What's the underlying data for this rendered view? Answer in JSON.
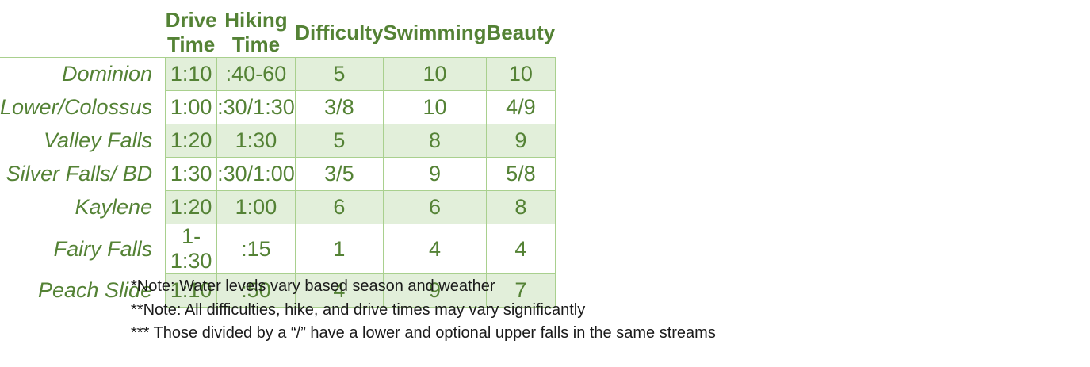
{
  "columns": [
    "Drive Time",
    "Hiking Time",
    "Difficulty",
    "Swimming",
    "Beauty"
  ],
  "rows": [
    {
      "name": "Dominion",
      "values": [
        "1:10",
        ":40-60",
        "5",
        "10",
        "10"
      ]
    },
    {
      "name": "Lower/Colossus",
      "values": [
        "1:00",
        ":30/1:30",
        "3/8",
        "10",
        "4/9"
      ]
    },
    {
      "name": "Valley Falls",
      "values": [
        "1:20",
        "1:30",
        "5",
        "8",
        "9"
      ]
    },
    {
      "name": "Silver Falls/ BD",
      "values": [
        "1:30",
        ":30/1:00",
        "3/5",
        "9",
        "5/8"
      ]
    },
    {
      "name": "Kaylene",
      "values": [
        "1:20",
        "1:00",
        "6",
        "6",
        "8"
      ]
    },
    {
      "name": "Fairy Falls",
      "values": [
        "1-1:30",
        ":15",
        "1",
        "4",
        "4"
      ]
    },
    {
      "name": "Peach Slide",
      "values": [
        "1:10",
        ":50",
        "4",
        "9",
        "7"
      ]
    }
  ],
  "notes": [
    "*Note: Water levels vary based season and weather",
    "**Note: All difficulties, hike, and drive times may vary significantly",
    "*** Those divided by a “/” have a lower and optional upper falls in the same streams"
  ],
  "colors": {
    "text_green": "#548235",
    "band_green": "#e2efda",
    "border_green": "#a9d08e"
  }
}
